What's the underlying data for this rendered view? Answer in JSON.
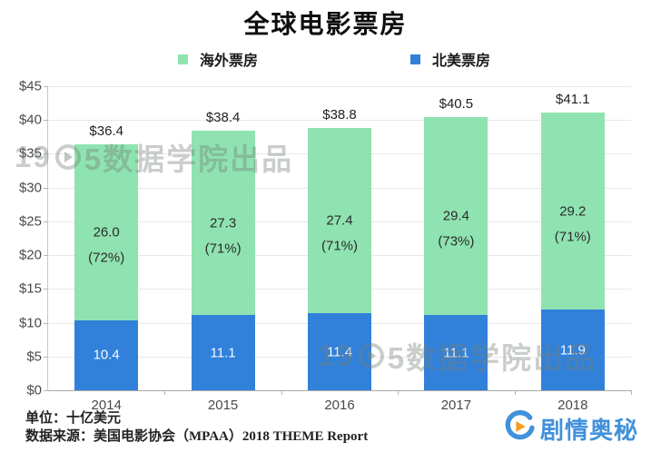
{
  "title": "全球电影票房",
  "legend": [
    {
      "label": "海外票房",
      "color": "#8fe3b0"
    },
    {
      "label": "北美票房",
      "color": "#3181db"
    }
  ],
  "watermark": {
    "prefix": "19",
    "suffix": "5数据学院出品"
  },
  "footer": {
    "unit_note": "单位：十亿美元",
    "source_note": "数据来源：美国电影协会（MPAA）2018  THEME  Report",
    "brand": "剧情奥秘"
  },
  "brand_colors": {
    "blue": "#4191dc",
    "orange": "#f59a23"
  },
  "chart_data": {
    "type": "bar",
    "stacked": true,
    "title": "全球电影票房",
    "unit": "十亿美元",
    "categories": [
      "2014",
      "2015",
      "2016",
      "2017",
      "2018"
    ],
    "series": [
      {
        "name": "北美票房",
        "color": "#3181db",
        "values": [
          10.4,
          11.1,
          11.4,
          11.1,
          11.9
        ],
        "labels": [
          "10.4",
          "11.1",
          "11.4",
          "11.1",
          "11.9"
        ],
        "label_style": "on-blue"
      },
      {
        "name": "海外票房",
        "color": "#8fe3b0",
        "values": [
          26.0,
          27.3,
          27.4,
          29.4,
          29.2
        ],
        "labels": [
          "26.0",
          "27.3",
          "27.4",
          "29.4",
          "29.2"
        ],
        "sub_labels": [
          "(72%)",
          "(71%)",
          "(71%)",
          "(73%)",
          "(71%)"
        ],
        "label_style": "on-green"
      }
    ],
    "totals": [
      36.4,
      38.4,
      38.8,
      40.5,
      41.1
    ],
    "total_labels": [
      "$36.4",
      "$38.4",
      "$38.8",
      "$40.5",
      "$41.1"
    ],
    "xlabel": "",
    "ylabel": "",
    "ylim": [
      0,
      45
    ],
    "ytick_step": 5,
    "ytick_labels": [
      "$0",
      "$5",
      "$10",
      "$15",
      "$20",
      "$25",
      "$30",
      "$35",
      "$40",
      "$45"
    ],
    "grid": true,
    "legend_position": "top"
  }
}
